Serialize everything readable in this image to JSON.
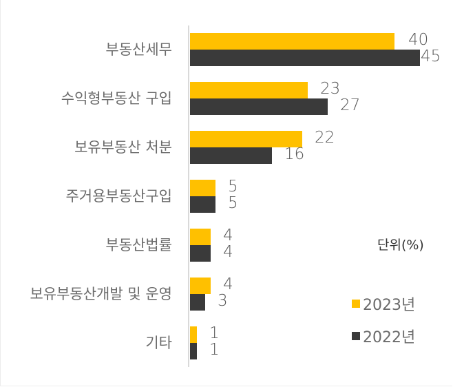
{
  "chart_data": {
    "type": "bar",
    "orientation": "horizontal",
    "title": "",
    "unit_label": "단위(%)",
    "categories": [
      "부동산세무",
      "수익형부동산 구입",
      "보유부동산 처분",
      "주거용부동산구입",
      "부동산법률",
      "보유부동산개발 및 운영",
      "기타"
    ],
    "series": [
      {
        "name": "2023년",
        "color": "#ffc000",
        "values": [
          40,
          23,
          22,
          5,
          4,
          4,
          1
        ]
      },
      {
        "name": "2022년",
        "color": "#3a3a3a",
        "values": [
          45,
          27,
          16,
          5,
          4,
          3,
          1
        ]
      }
    ],
    "xlabel": "",
    "ylabel": "",
    "xlim": [
      0,
      45
    ],
    "grid": false,
    "legend_position": "right",
    "data_labels": true
  },
  "legend": {
    "unit": "단위(%)",
    "items": [
      {
        "label": "2023년",
        "color": "#ffc000"
      },
      {
        "label": "2022년",
        "color": "#3a3a3a"
      }
    ]
  }
}
